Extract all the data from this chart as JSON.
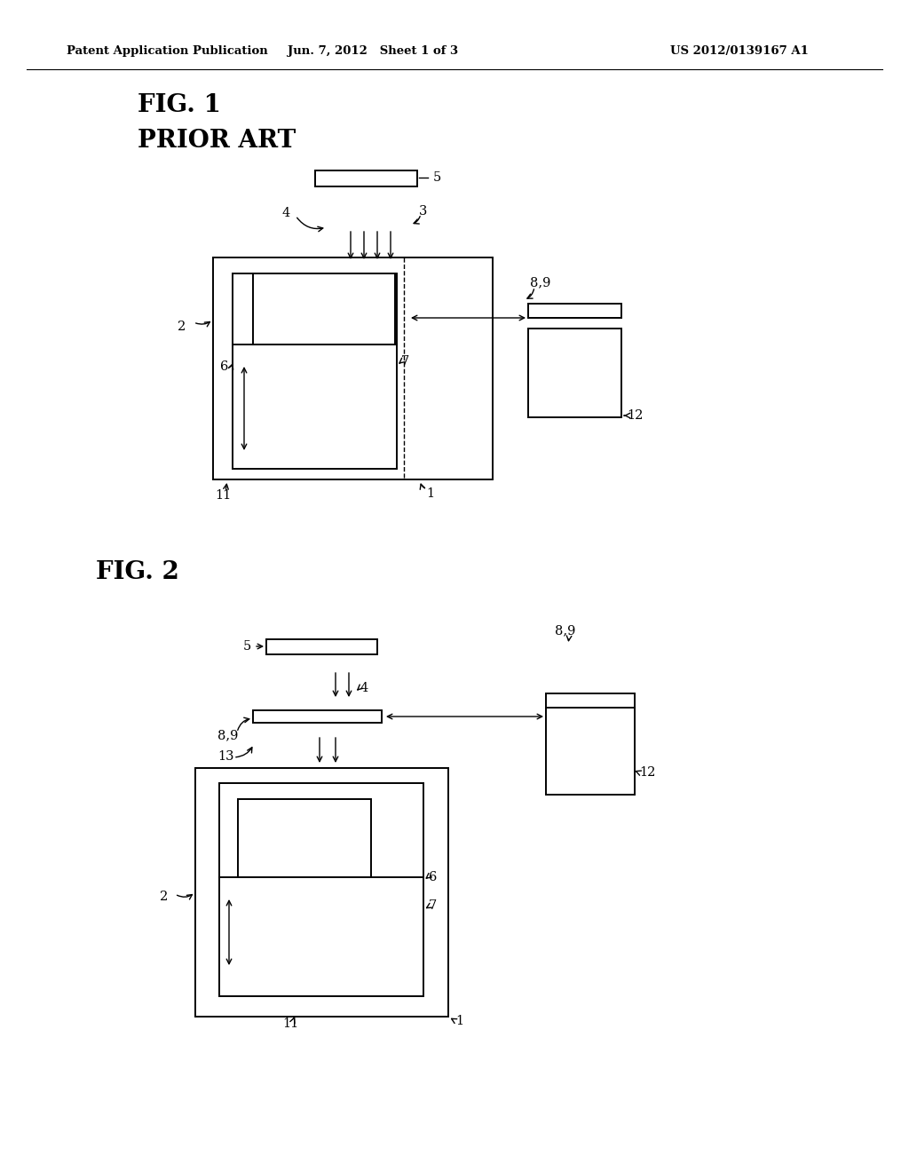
{
  "bg_color": "#ffffff",
  "header_left": "Patent Application Publication",
  "header_mid": "Jun. 7, 2012   Sheet 1 of 3",
  "header_right": "US 2012/0139167 A1",
  "fig1_label": "FIG. 1",
  "fig1_sublabel": "PRIOR ART",
  "fig2_label": "FIG. 2"
}
